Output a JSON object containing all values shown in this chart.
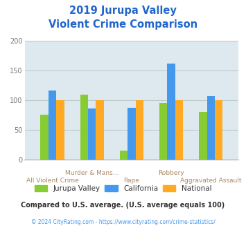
{
  "title_line1": "2019 Jurupa Valley",
  "title_line2": "Violent Crime Comparison",
  "categories": [
    "All Violent Crime",
    "Murder & Mans...",
    "Rape",
    "Robbery",
    "Aggravated Assault"
  ],
  "cat_labels_row1": [
    "",
    "Murder & Mans...",
    "",
    "Robbery",
    ""
  ],
  "cat_labels_row2": [
    "All Violent Crime",
    "",
    "Rape",
    "",
    "Aggravated Assault"
  ],
  "series": {
    "Jurupa Valley": [
      76,
      109,
      15,
      96,
      80
    ],
    "California": [
      117,
      86,
      87,
      162,
      107
    ],
    "National": [
      100,
      100,
      100,
      100,
      100
    ]
  },
  "colors": {
    "Jurupa Valley": "#88CC33",
    "California": "#4499EE",
    "National": "#FFAA22"
  },
  "ylim": [
    0,
    200
  ],
  "yticks": [
    0,
    50,
    100,
    150,
    200
  ],
  "bg_color": "#DDE9EE",
  "title_color": "#2266CC",
  "xtick_color": "#AA8866",
  "ytick_color": "#777777",
  "grid_color": "#BBCCCC",
  "footnote1": "Compared to U.S. average. (U.S. average equals 100)",
  "footnote2": "© 2024 CityRating.com - https://www.cityrating.com/crime-statistics/",
  "footnote1_color": "#333333",
  "footnote2_color": "#4499EE"
}
